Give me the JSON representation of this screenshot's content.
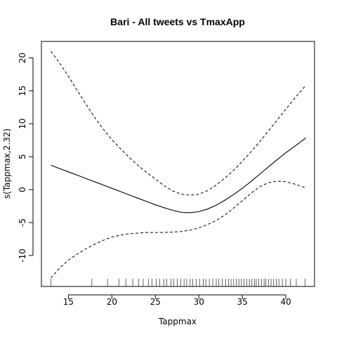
{
  "chart_data": {
    "type": "line",
    "title": "Bari - All tweets vs TmaxApp",
    "xlabel": "Tappmax",
    "ylabel": "s(Tappmax,2.32)",
    "xlim": [
      11.9,
      43.3
    ],
    "ylim": [
      -14.7,
      22.5
    ],
    "xticks": [
      15,
      20,
      25,
      30,
      35,
      40
    ],
    "yticks": [
      -10,
      -5,
      0,
      5,
      10,
      15,
      20
    ],
    "grid": false,
    "x": [
      13,
      14,
      15,
      16,
      17,
      18,
      19,
      20,
      21,
      22,
      23,
      24,
      25,
      26,
      27,
      28,
      29,
      30,
      31,
      32,
      33,
      34,
      35,
      36,
      37,
      38,
      39,
      40,
      41,
      42,
      42.3
    ],
    "series": [
      {
        "role": "fit",
        "style": "solid",
        "values": [
          3.7,
          3.2,
          2.7,
          2.2,
          1.7,
          1.2,
          0.7,
          0.2,
          -0.3,
          -0.8,
          -1.3,
          -1.8,
          -2.3,
          -2.75,
          -3.15,
          -3.45,
          -3.5,
          -3.35,
          -2.95,
          -2.35,
          -1.6,
          -0.75,
          0.2,
          1.25,
          2.35,
          3.45,
          4.55,
          5.6,
          6.55,
          7.55,
          7.85
        ]
      },
      {
        "role": "upper",
        "style": "dashed",
        "values": [
          21.0,
          19.2,
          17.2,
          15.1,
          13.0,
          11.0,
          9.2,
          7.6,
          6.2,
          4.9,
          3.7,
          2.6,
          1.6,
          0.6,
          -0.2,
          -0.7,
          -0.85,
          -0.7,
          -0.15,
          0.7,
          1.75,
          2.95,
          4.3,
          5.75,
          7.3,
          8.9,
          10.55,
          12.2,
          13.85,
          15.4,
          15.8
        ]
      },
      {
        "role": "lower",
        "style": "dashed",
        "values": [
          -13.4,
          -11.9,
          -10.7,
          -9.8,
          -9.0,
          -8.3,
          -7.7,
          -7.2,
          -6.9,
          -6.7,
          -6.6,
          -6.5,
          -6.5,
          -6.5,
          -6.45,
          -6.35,
          -6.15,
          -5.8,
          -5.3,
          -4.7,
          -3.85,
          -2.8,
          -1.7,
          -0.55,
          0.45,
          1.05,
          1.3,
          1.2,
          0.85,
          0.4,
          0.2
        ]
      }
    ],
    "rug": [
      13,
      17.7,
      19.5,
      20.8,
      21.6,
      22.4,
      23.1,
      23.6,
      24.2,
      24.6,
      25.1,
      25.5,
      26.0,
      26.3,
      26.8,
      27.1,
      27.5,
      27.9,
      28.3,
      28.6,
      29.0,
      29.3,
      29.7,
      30.1,
      30.5,
      30.8,
      31.2,
      31.6,
      32.0,
      32.3,
      32.7,
      33.1,
      33.4,
      33.7,
      34.0,
      34.3,
      34.6,
      34.9,
      35.2,
      35.5,
      35.8,
      36.1,
      36.4,
      36.6,
      36.9,
      37.2,
      37.5,
      37.7,
      38.0,
      38.3,
      38.6,
      38.9,
      39.2,
      39.6,
      40.0,
      40.5,
      41.2,
      42.2
    ]
  }
}
